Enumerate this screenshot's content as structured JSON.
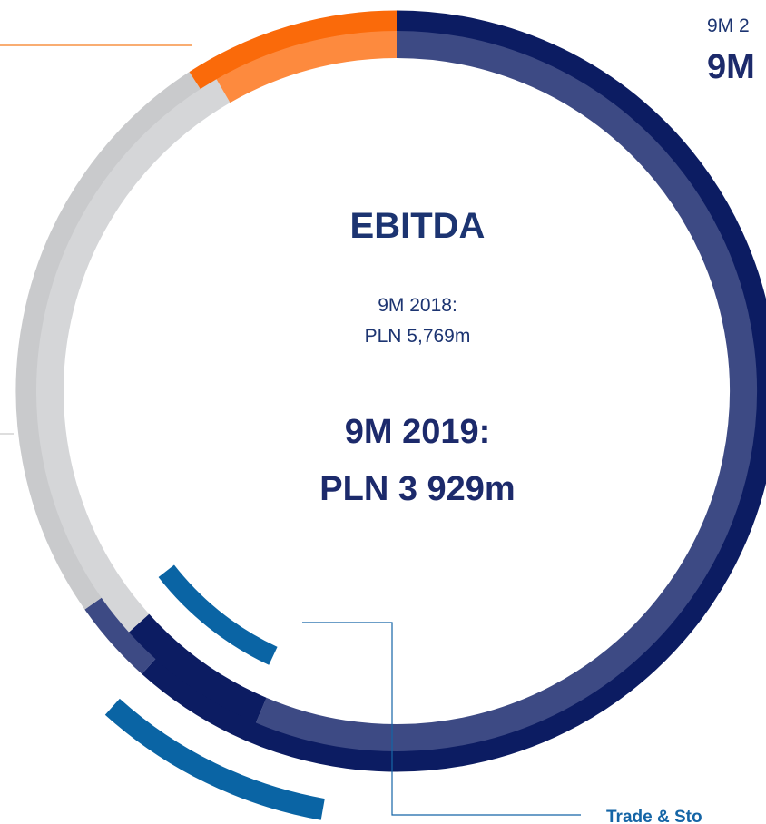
{
  "center": {
    "title": "EBITDA",
    "previous_period": "9M 2018:",
    "previous_value": "PLN 5,769m",
    "current_period": "9M 2019:",
    "current_value": "PLN 3 929m"
  },
  "top_right": {
    "previous_period": "9M 2",
    "current_period": "9M"
  },
  "bottom_right": {
    "label": "Trade & Sto"
  }
}
